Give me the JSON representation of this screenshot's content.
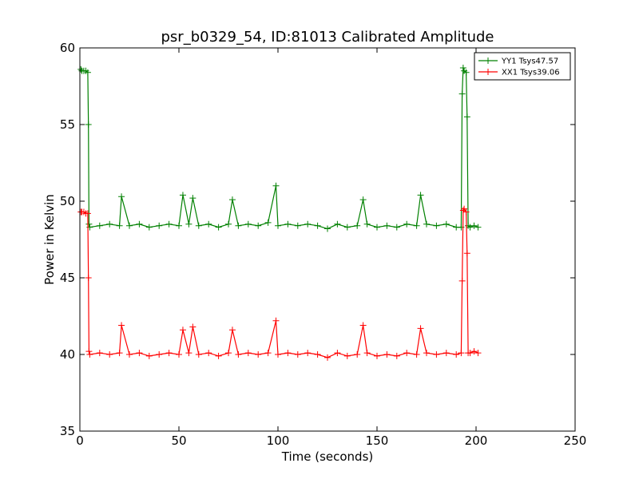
{
  "chart_data": {
    "type": "line",
    "title": "psr_b0329_54, ID:81013 Calibrated Amplitude",
    "xlabel": "Time (seconds)",
    "ylabel": "Power in Kelvin",
    "xlim": [
      0,
      250
    ],
    "ylim": [
      35,
      60
    ],
    "x_ticks": [
      "0",
      "50",
      "100",
      "150",
      "200",
      "250"
    ],
    "y_ticks": [
      "35",
      "40",
      "45",
      "50",
      "55",
      "60"
    ],
    "grid": false,
    "legend_position": "upper right",
    "series": [
      {
        "name": "YY1 Tsys47.57",
        "color": "#008000",
        "marker": "+",
        "x": [
          0.5,
          1,
          2,
          3,
          4,
          4.3,
          4.6,
          5,
          10,
          15,
          20,
          21,
          25,
          30,
          35,
          40,
          45,
          50,
          52,
          55,
          57,
          60,
          65,
          70,
          75,
          77,
          80,
          85,
          90,
          95,
          99,
          100,
          105,
          110,
          115,
          120,
          125,
          130,
          135,
          140,
          143,
          145,
          150,
          155,
          160,
          165,
          170,
          172,
          175,
          180,
          185,
          190,
          192.5,
          193,
          193.5,
          194,
          195,
          195.5,
          196,
          197,
          199,
          201
        ],
        "y": [
          58.6,
          58.5,
          58.5,
          58.5,
          58.4,
          55.0,
          48.5,
          48.3,
          48.4,
          48.5,
          48.4,
          50.3,
          48.4,
          48.5,
          48.3,
          48.4,
          48.5,
          48.4,
          50.4,
          48.5,
          50.2,
          48.4,
          48.5,
          48.3,
          48.5,
          50.1,
          48.4,
          48.5,
          48.4,
          48.6,
          51.0,
          48.4,
          48.5,
          48.4,
          48.5,
          48.4,
          48.2,
          48.5,
          48.3,
          48.4,
          50.1,
          48.5,
          48.3,
          48.4,
          48.3,
          48.5,
          48.4,
          50.4,
          48.5,
          48.4,
          48.5,
          48.3,
          48.3,
          57.0,
          58.7,
          58.5,
          58.4,
          55.5,
          48.4,
          48.3,
          48.4,
          48.3
        ]
      },
      {
        "name": "XX1 Tsys39.06",
        "color": "#ff0000",
        "marker": "+",
        "x": [
          0.5,
          1,
          2,
          3,
          4,
          4.3,
          4.6,
          5,
          10,
          15,
          20,
          21,
          25,
          30,
          35,
          40,
          45,
          50,
          52,
          55,
          57,
          60,
          65,
          70,
          75,
          77,
          80,
          85,
          90,
          95,
          99,
          100,
          105,
          110,
          115,
          120,
          125,
          130,
          135,
          140,
          143,
          145,
          150,
          155,
          160,
          165,
          170,
          172,
          175,
          180,
          185,
          190,
          192.5,
          193,
          193.5,
          194,
          195,
          195.5,
          196,
          197,
          199,
          201
        ],
        "y": [
          49.3,
          49.3,
          49.3,
          49.2,
          49.2,
          45.0,
          40.2,
          40.0,
          40.1,
          40.0,
          40.1,
          41.9,
          40.0,
          40.1,
          39.9,
          40.0,
          40.1,
          40.0,
          41.6,
          40.1,
          41.8,
          40.0,
          40.1,
          39.9,
          40.1,
          41.6,
          40.0,
          40.1,
          40.0,
          40.1,
          42.2,
          40.0,
          40.1,
          40.0,
          40.1,
          40.0,
          39.8,
          40.1,
          39.9,
          40.0,
          41.9,
          40.1,
          39.9,
          40.0,
          39.9,
          40.1,
          40.0,
          41.7,
          40.1,
          40.0,
          40.1,
          40.0,
          40.1,
          44.8,
          49.4,
          49.5,
          49.3,
          46.6,
          40.1,
          40.1,
          40.2,
          40.1
        ]
      }
    ]
  }
}
